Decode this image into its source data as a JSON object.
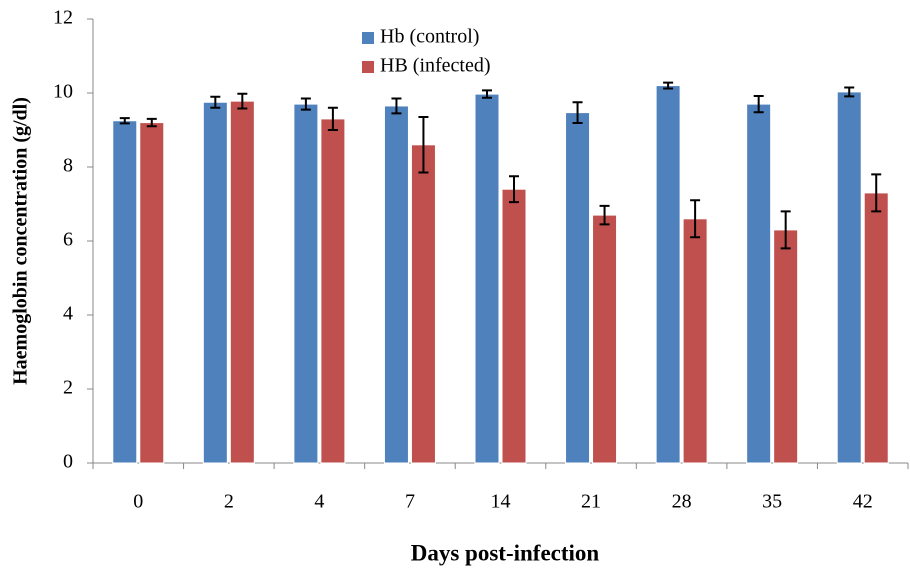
{
  "chart_data": {
    "type": "bar",
    "x_label": "Days post-infection",
    "y_label": "Haemoglobin concentration (g/dl)",
    "categories": [
      "0",
      "2",
      "4",
      "7",
      "14",
      "21",
      "28",
      "35",
      "42"
    ],
    "series": [
      {
        "name": "Hb (control)",
        "color": "#4f81bd",
        "values": [
          9.25,
          9.75,
          9.7,
          9.65,
          9.97,
          9.47,
          10.2,
          9.7,
          10.03
        ],
        "errors": [
          0.07,
          0.15,
          0.15,
          0.2,
          0.1,
          0.28,
          0.08,
          0.22,
          0.12
        ]
      },
      {
        "name": "HB (infected)",
        "color": "#c0504d",
        "values": [
          9.2,
          9.78,
          9.3,
          8.6,
          7.4,
          6.7,
          6.6,
          6.3,
          7.3
        ],
        "errors": [
          0.1,
          0.2,
          0.3,
          0.75,
          0.35,
          0.25,
          0.5,
          0.5,
          0.5
        ]
      }
    ],
    "ylim": [
      0,
      12
    ],
    "yticks": [
      0,
      2,
      4,
      6,
      8,
      10,
      12
    ],
    "legend": "top-center"
  }
}
